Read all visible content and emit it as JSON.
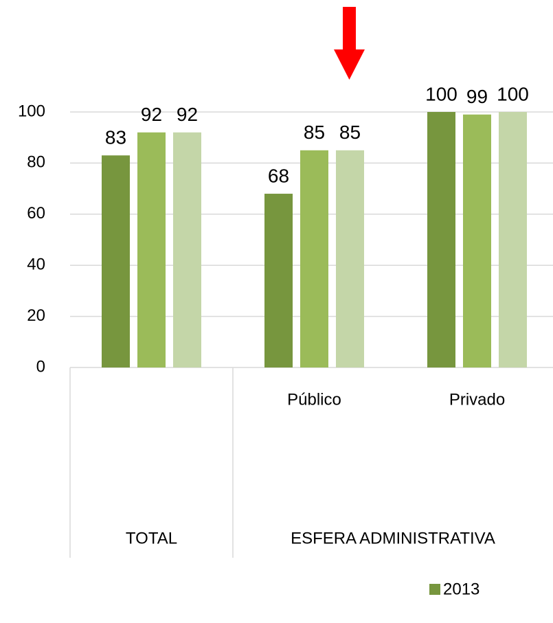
{
  "chart_data": {
    "type": "bar",
    "categories": [
      null,
      "Público",
      "Privado"
    ],
    "category_groups": [
      {
        "label": "TOTAL",
        "size": 1
      },
      {
        "label": "ESFERA ADMINISTRATIVA",
        "size": 2
      }
    ],
    "series": [
      {
        "name": "2013",
        "color": "#77963e",
        "values": [
          83,
          68,
          100
        ]
      },
      {
        "color": "#9bbb59",
        "values": [
          92,
          85,
          99
        ]
      },
      {
        "color": "#c4d6a8",
        "values": [
          92,
          85,
          100
        ]
      }
    ],
    "ylim": [
      0,
      100
    ],
    "yticks": [
      0,
      20,
      40,
      60,
      80,
      100
    ],
    "grid": true,
    "legend": "bottom"
  }
}
